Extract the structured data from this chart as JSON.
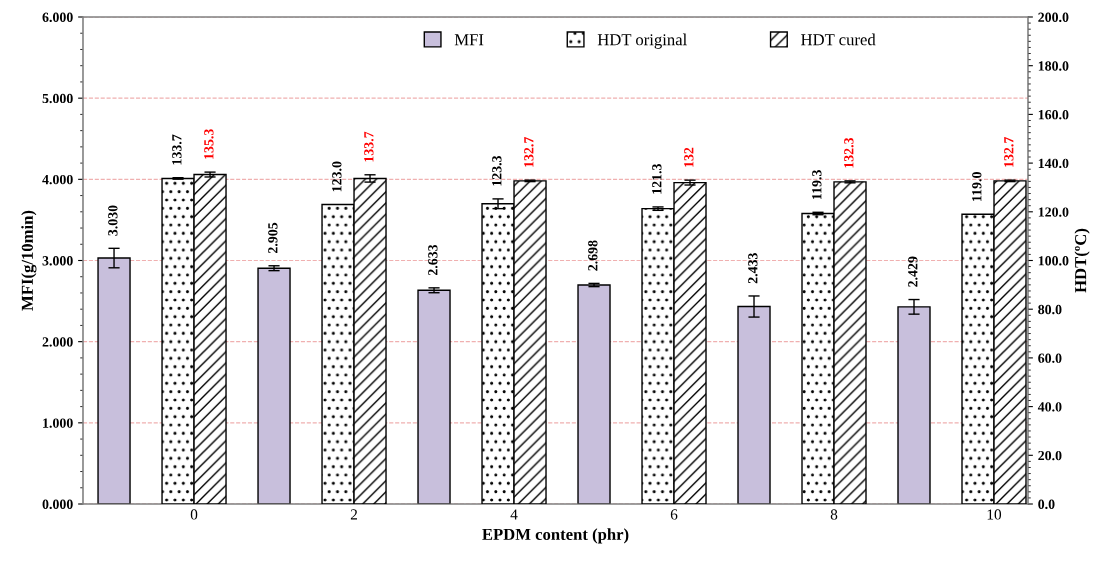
{
  "chart_data": {
    "type": "bar",
    "xlabel": "EPDM content (phr)",
    "ylabel": "MFI(g/10min)",
    "y2label": "HDT(ºC)",
    "categories": [
      "0",
      "2",
      "4",
      "6",
      "8",
      "10"
    ],
    "series": [
      {
        "name": "MFI",
        "color": "#c8bfdc",
        "values": [
          3.03,
          2.905,
          2.633,
          2.698,
          2.433,
          2.429
        ],
        "errors": [
          0.12,
          0.03,
          0.03,
          0.02,
          0.13,
          0.09
        ],
        "value_labels": [
          "3.030",
          "2.905",
          "2.633",
          "2.698",
          "2.433",
          "2.429"
        ]
      },
      {
        "name": "HDT original",
        "color": "#ffffff",
        "axis": "y2",
        "values": [
          133.7,
          123.0,
          123.3,
          121.3,
          119.3,
          119.0
        ],
        "errors": [
          0.3,
          null,
          2,
          0.7,
          0.5,
          null
        ],
        "value_labels": [
          "133.7",
          "123.0",
          "123.3",
          "121.3",
          "119.3",
          "119.0"
        ]
      },
      {
        "name": "HDT cured",
        "color": "#ffffff",
        "axis": "y2",
        "values": [
          135.3,
          133.7,
          132.7,
          132,
          132.3,
          132.7
        ],
        "errors": [
          1,
          1.5,
          0.3,
          1,
          0.4,
          0.3
        ],
        "value_labels": [
          "135.3",
          "133.7",
          "132.7",
          "132",
          "132.3",
          "132.7"
        ]
      }
    ],
    "ylim": [
      0,
      6
    ],
    "yticks": [
      {
        "value": 0,
        "label": "0.000"
      },
      {
        "value": 1,
        "label": "1.000"
      },
      {
        "value": 2,
        "label": "2.000"
      },
      {
        "value": 3,
        "label": "3.000"
      },
      {
        "value": 4,
        "label": "4.000"
      },
      {
        "value": 5,
        "label": "5.000"
      },
      {
        "value": 6,
        "label": "6.000"
      }
    ],
    "y2lim": [
      0,
      200
    ],
    "y2ticks": [
      {
        "value": 0,
        "label": "0.0"
      },
      {
        "value": 20,
        "label": "20.0"
      },
      {
        "value": 40,
        "label": "40.0"
      },
      {
        "value": 60,
        "label": "60.0"
      },
      {
        "value": 80,
        "label": "80.0"
      },
      {
        "value": 100,
        "label": "100.0"
      },
      {
        "value": 120,
        "label": "120.0"
      },
      {
        "value": 140,
        "label": "140.0"
      },
      {
        "value": 160,
        "label": "160.0"
      },
      {
        "value": 180,
        "label": "180.0"
      },
      {
        "value": 200,
        "label": "200.0"
      }
    ],
    "grid": "y",
    "legend": "top"
  }
}
